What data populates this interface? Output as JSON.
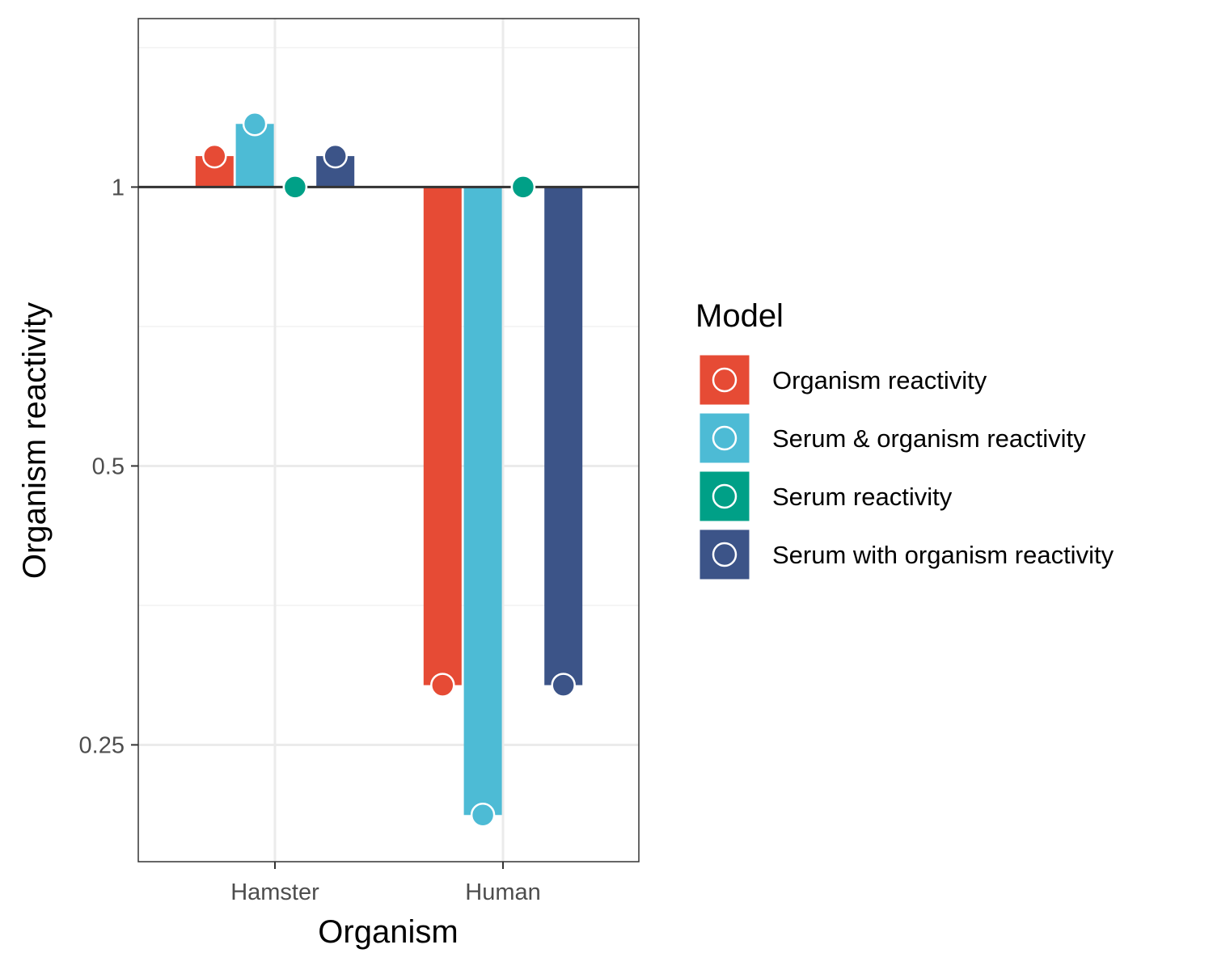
{
  "chart_data": {
    "type": "bar",
    "xlabel": "Organism",
    "ylabel": "Organism reactivity",
    "y_scale": "log2",
    "baseline": 1,
    "ylim": [
      0.187,
      1.52
    ],
    "yticks": [
      0.25,
      0.5,
      1
    ],
    "ytick_labels": [
      "0.25",
      "0.5",
      "1"
    ],
    "grid": true,
    "categories": [
      "Hamster",
      "Human"
    ],
    "legend": {
      "title": "Model",
      "position": "right"
    },
    "series": [
      {
        "name": "Organism reactivity",
        "color": "#E64B35",
        "values": [
          1.08,
          0.29
        ]
      },
      {
        "name": "Serum & organism reactivity",
        "color": "#4DBBD5",
        "values": [
          1.17,
          0.21
        ]
      },
      {
        "name": "Serum reactivity",
        "color": "#00A087",
        "values": [
          1.0,
          1.0
        ]
      },
      {
        "name": "Serum with organism reactivity",
        "color": "#3C5488",
        "values": [
          1.08,
          0.29
        ]
      }
    ]
  }
}
